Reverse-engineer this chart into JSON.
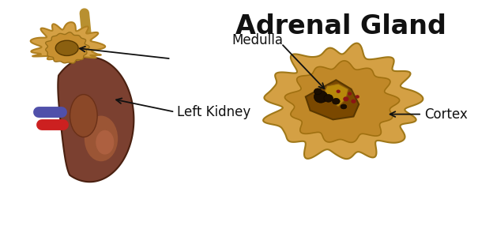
{
  "title": "Adrenal Gland",
  "label_left_kidney": "Left Kidney",
  "label_medulla": "Medulla",
  "label_cortex": "Cortex",
  "bg_color": "#ffffff",
  "title_fontsize": 24,
  "label_fontsize": 12,
  "kidney_color": "#7B4030",
  "kidney_shadow": "#5c2c1a",
  "kidney_highlight": "#9B5535",
  "adrenal_color": "#D4A044",
  "adrenal_inner": "#C89030",
  "adrenal_dark": "#8B6010",
  "medulla_color": "#8B5800",
  "medulla_bg": "#7a4a00",
  "artery_color": "#CC2020",
  "vein_color": "#5050AA",
  "ureter_color": "#B89030",
  "arrow_color": "#111111",
  "text_color": "#111111",
  "cross_outer": "#D4A044",
  "cross_inner_bg": "#C08828",
  "cross_medulla": "#7a4800"
}
